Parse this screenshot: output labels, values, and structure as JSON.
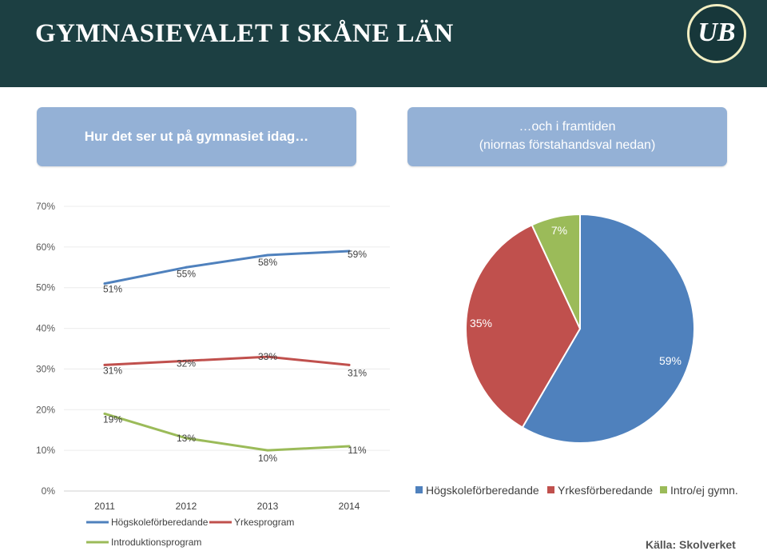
{
  "header": {
    "title": "GYMNASIEVALET I SKÅNE LÄN",
    "logo_text": "UB",
    "bg_color": "#1c3f42"
  },
  "boxes": {
    "left": "Hur det ser ut på gymnasiet idag…",
    "right_line1": "…och i framtiden",
    "right_line2": "(niornas förstahandsval nedan)"
  },
  "source": "Källa: Skolverket",
  "chart_data": [
    {
      "type": "line",
      "x": [
        "2011",
        "2012",
        "2013",
        "2014"
      ],
      "ylim": [
        0,
        70
      ],
      "y_ticks": [
        "0%",
        "10%",
        "20%",
        "30%",
        "40%",
        "50%",
        "60%",
        "70%"
      ],
      "grid": true,
      "legend_position": "bottom",
      "series": [
        {
          "name": "Högskoleförberedande",
          "values": [
            51,
            55,
            58,
            59
          ],
          "labels": [
            "51%",
            "55%",
            "58%",
            "59%"
          ],
          "color": "#4f81bd"
        },
        {
          "name": "Yrkesprogram",
          "values": [
            31,
            32,
            33,
            31
          ],
          "labels": [
            "31%",
            "32%",
            "33%",
            "31%"
          ],
          "color": "#c0504d"
        },
        {
          "name": "Introduktionsprogram",
          "values": [
            19,
            13,
            10,
            11
          ],
          "labels": [
            "19%",
            "13%",
            "10%",
            "11%"
          ],
          "color": "#9bbb59"
        }
      ]
    },
    {
      "type": "pie",
      "legend_position": "bottom",
      "slices": [
        {
          "name": "Högskoleförberedande",
          "value": 59,
          "label": "59%",
          "color": "#4f81bd"
        },
        {
          "name": "Yrkesförberedande",
          "value": 35,
          "label": "35%",
          "color": "#c0504d"
        },
        {
          "name": "Intro/ej gymn.",
          "value": 7,
          "label": "7%",
          "color": "#9bbb59"
        }
      ]
    }
  ]
}
